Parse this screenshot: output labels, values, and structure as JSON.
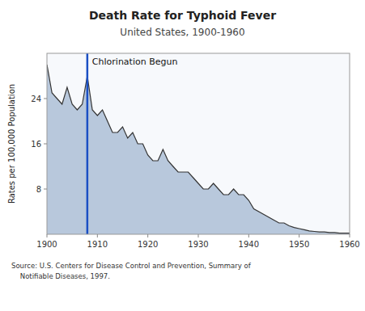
{
  "chart_data": {
    "type": "area",
    "title": "Death Rate for Typhoid Fever",
    "subtitle": "United States, 1900-1960",
    "ylabel": "Rates per 100,000 Population",
    "source": [
      "Source: U.S. Centers for Disease Control and Prevention, Summary of",
      "    Notifiable Diseases, 1997."
    ],
    "annotations": [
      {
        "text": "Chlorination Begun",
        "x": 1908,
        "color": "#1a4fc4"
      }
    ],
    "color": "#b8c8dc",
    "x": [
      1900,
      1901,
      1902,
      1903,
      1904,
      1905,
      1906,
      1907,
      1908,
      1909,
      1910,
      1911,
      1912,
      1913,
      1914,
      1915,
      1916,
      1917,
      1918,
      1919,
      1920,
      1921,
      1922,
      1923,
      1924,
      1925,
      1926,
      1927,
      1928,
      1929,
      1930,
      1931,
      1932,
      1933,
      1934,
      1935,
      1936,
      1937,
      1938,
      1939,
      1940,
      1941,
      1942,
      1943,
      1944,
      1945,
      1946,
      1947,
      1948,
      1949,
      1950,
      1951,
      1952,
      1953,
      1954,
      1955,
      1956,
      1957,
      1958,
      1959,
      1960
    ],
    "values": [
      30,
      25,
      24,
      23,
      26,
      23,
      22,
      23,
      28,
      22,
      21,
      22,
      20,
      18,
      18,
      19,
      17,
      18,
      16,
      16,
      14,
      13,
      13,
      15,
      13,
      12,
      11,
      11,
      11,
      10,
      9,
      8,
      8,
      9,
      8,
      7,
      7,
      8,
      7,
      7,
      6,
      4.5,
      4,
      3.5,
      3,
      2.5,
      2,
      2,
      1.5,
      1.2,
      1,
      0.8,
      0.6,
      0.5,
      0.4,
      0.4,
      0.3,
      0.3,
      0.2,
      0.2,
      0.2
    ],
    "xlim": [
      1900,
      1960
    ],
    "ylim": [
      0,
      32
    ],
    "xticks": [
      1900,
      1910,
      1920,
      1930,
      1940,
      1950,
      1960
    ],
    "yticks": [
      8,
      16,
      24
    ],
    "grid": false
  }
}
